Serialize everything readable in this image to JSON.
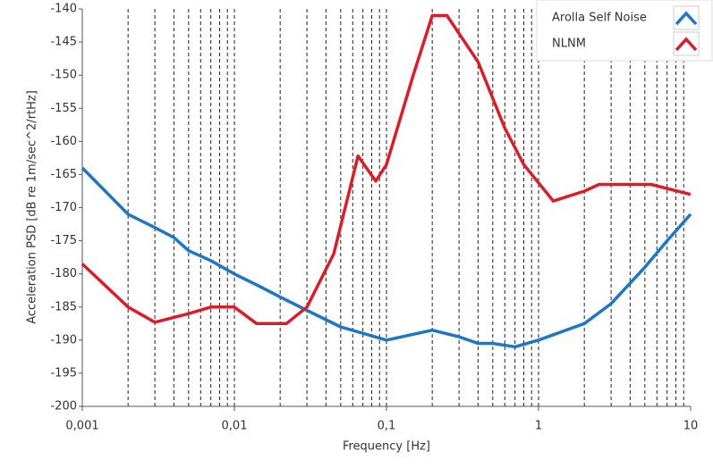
{
  "chart_data": {
    "type": "line",
    "xlabel": "Frequency [Hz]",
    "ylabel": "Acceleration  PSD [dB re 1m/sec^2/rtHz]",
    "xscale": "log",
    "xlim": [
      0.001,
      10
    ],
    "ylim": [
      -200,
      -140
    ],
    "xticks": [
      {
        "value": 0.001,
        "label": "0,001"
      },
      {
        "value": 0.01,
        "label": "0,01"
      },
      {
        "value": 0.1,
        "label": "0,1"
      },
      1,
      10
    ],
    "yticks": [
      -140,
      -145,
      -150,
      -155,
      -160,
      -165,
      -170,
      -175,
      -180,
      -185,
      -190,
      -195,
      -200
    ],
    "grid": "x-minor",
    "legend": "top-right",
    "series": [
      {
        "name": "Arolla Self Noise",
        "color": "#1f77c4",
        "x": [
          0.001,
          0.002,
          0.003,
          0.004,
          0.005,
          0.007,
          0.01,
          0.015,
          0.02,
          0.03,
          0.05,
          0.1,
          0.2,
          0.3,
          0.4,
          0.5,
          0.7,
          1,
          2,
          3,
          5,
          7,
          10
        ],
        "values": [
          -164,
          -171,
          -173,
          -174.5,
          -176.5,
          -178,
          -180,
          -182,
          -183.5,
          -185.5,
          -188,
          -190,
          -188.5,
          -189.5,
          -190.5,
          -190.5,
          -191,
          -190,
          -187.5,
          -184.5,
          -179,
          -175,
          -171
        ]
      },
      {
        "name": "NLNM",
        "color": "#d91e2a",
        "x": [
          0.001,
          0.002,
          0.003,
          0.005,
          0.007,
          0.01,
          0.014,
          0.022,
          0.03,
          0.045,
          0.065,
          0.085,
          0.1,
          0.15,
          0.2,
          0.25,
          0.4,
          0.6,
          0.8,
          1.25,
          2,
          2.5,
          5.5,
          10
        ],
        "values": [
          -178.5,
          -185,
          -187.3,
          -186,
          -185,
          -185,
          -187.5,
          -187.5,
          -185,
          -177,
          -162.2,
          -166,
          -163.5,
          -150,
          -141,
          -141,
          -148,
          -158,
          -163.5,
          -169,
          -167.5,
          -166.5,
          -166.5,
          -168
        ]
      }
    ]
  }
}
